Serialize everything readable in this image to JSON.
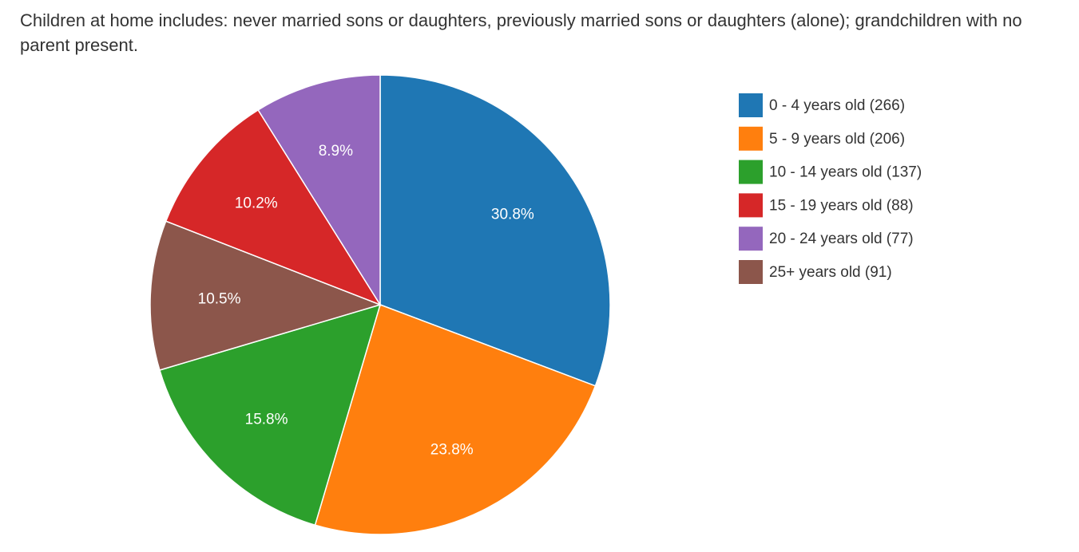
{
  "note": "Children at home includes: never married sons or daughters, previously married sons or daughters (alone); grandchildren with no parent present.",
  "chart_data": {
    "type": "pie",
    "title": "",
    "legend_position": "right",
    "slices": [
      {
        "label": "0 - 4 years old (266)",
        "value": 266,
        "percent_label": "30.8%",
        "color": "#1f77b4"
      },
      {
        "label": "5 - 9 years old (206)",
        "value": 206,
        "percent_label": "23.8%",
        "color": "#ff7f0e"
      },
      {
        "label": "10 - 14 years old (137)",
        "value": 137,
        "percent_label": "15.8%",
        "color": "#2ca02c"
      },
      {
        "label": "15 - 19 years old (88)",
        "value": 88,
        "percent_label": "10.2%",
        "color": "#d62728"
      },
      {
        "label": "20 - 24 years old (77)",
        "value": 77,
        "percent_label": "8.9%",
        "color": "#9467bd"
      },
      {
        "label": "25+ years old (91)",
        "value": 91,
        "percent_label": "10.5%",
        "color": "#8c564b"
      }
    ],
    "draw_order": [
      0,
      1,
      2,
      5,
      3,
      4
    ]
  }
}
